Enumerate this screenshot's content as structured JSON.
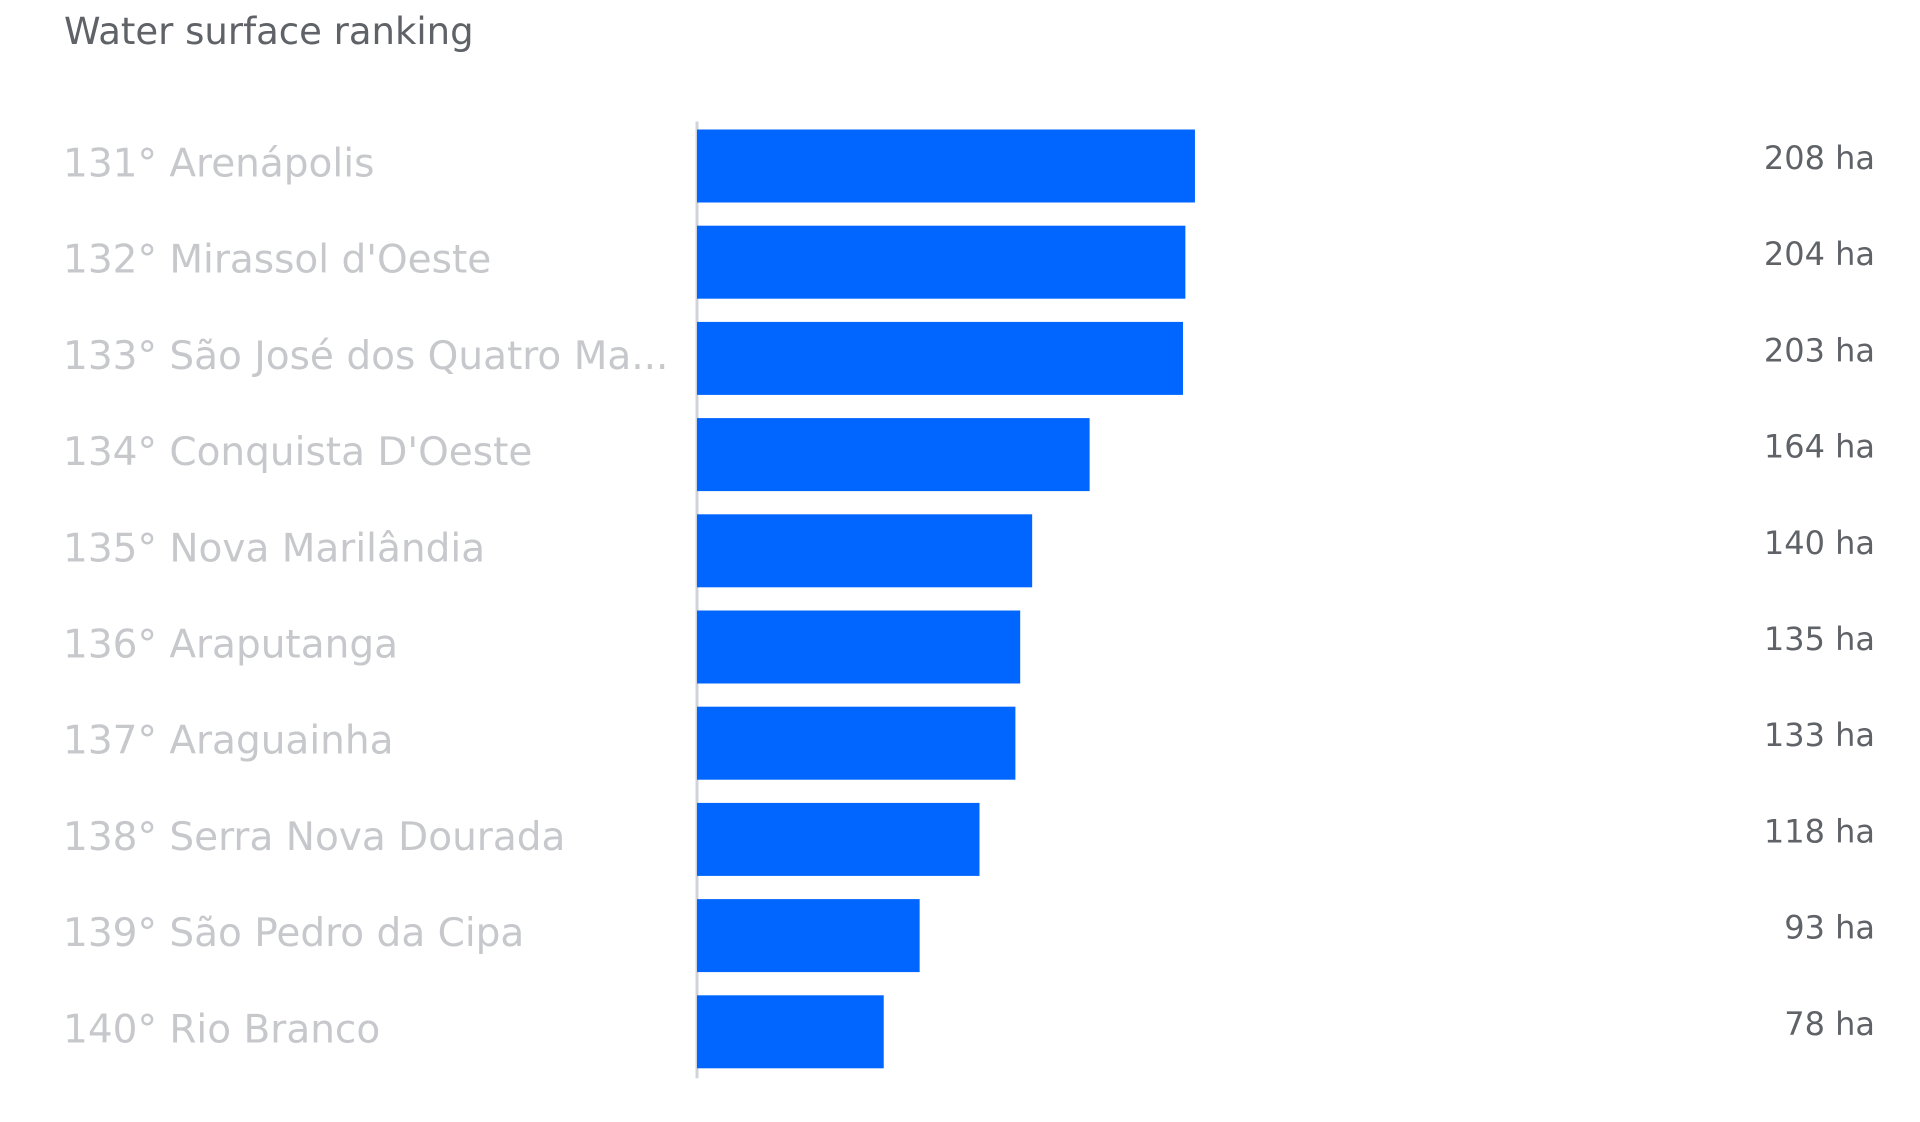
{
  "chart_data": {
    "type": "bar",
    "orientation": "horizontal",
    "title": "Water surface ranking",
    "categories": [
      "131° Arenápolis",
      "132° Mirassol d'Oeste",
      "133° São José dos Quatro Ma...",
      "134° Conquista D'Oeste",
      "135° Nova Marilândia",
      "136° Araputanga",
      "137° Araguainha",
      "138° Serra Nova Dourada",
      "139° São Pedro da Cipa",
      "140° Rio Branco"
    ],
    "values": [
      208,
      204,
      203,
      164,
      140,
      135,
      133,
      118,
      93,
      78
    ],
    "value_labels": [
      "208 ha",
      "204 ha",
      "203 ha",
      "164 ha",
      "140 ha",
      "135 ha",
      "133 ha",
      "118 ha",
      "93 ha",
      "78 ha"
    ],
    "unit": "ha",
    "xlim": [
      0,
      500
    ],
    "grid": false,
    "colors": {
      "bar": "#0066ff",
      "axis": "#d0d3d8",
      "category_text": "#c6c8cc",
      "value_text": "#5f6368",
      "title_text": "#5f6368"
    }
  }
}
